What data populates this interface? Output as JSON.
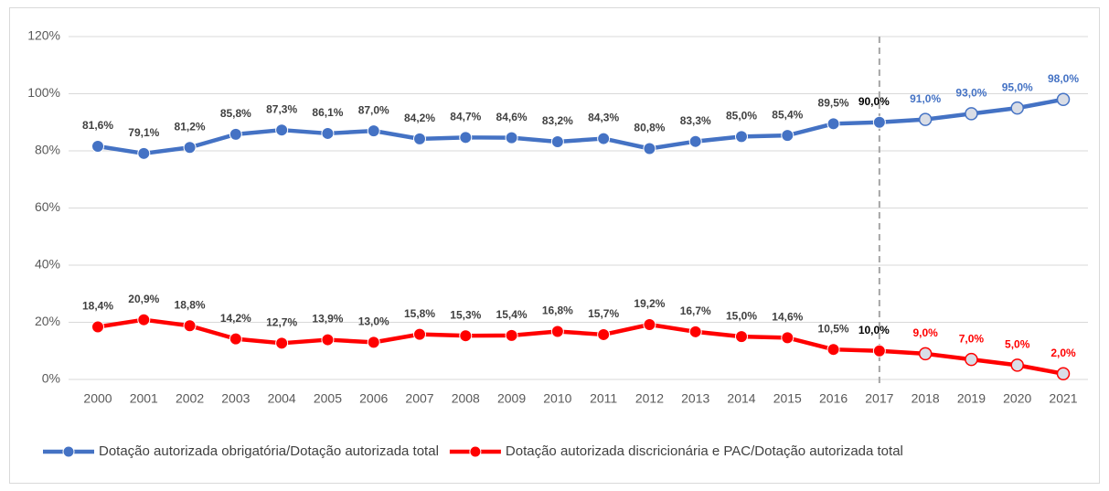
{
  "chart_data": {
    "type": "line",
    "categories": [
      "2000",
      "2001",
      "2002",
      "2003",
      "2004",
      "2005",
      "2006",
      "2007",
      "2008",
      "2009",
      "2010",
      "2011",
      "2012",
      "2013",
      "2014",
      "2015",
      "2016",
      "2017",
      "2018",
      "2019",
      "2020",
      "2021"
    ],
    "series": [
      {
        "name": "Dotação autorizada obrigatória/Dotação autorizada total",
        "color": "#4472c4",
        "values": [
          81.6,
          79.1,
          81.2,
          85.8,
          87.3,
          86.1,
          87.0,
          84.2,
          84.7,
          84.6,
          83.2,
          84.3,
          80.8,
          83.3,
          85.0,
          85.4,
          89.5,
          90.0,
          91.0,
          93.0,
          95.0,
          98.0
        ],
        "value_labels": [
          "81,6%",
          "79,1%",
          "81,2%",
          "85,8%",
          "87,3%",
          "86,1%",
          "87,0%",
          "84,2%",
          "84,7%",
          "84,6%",
          "83,2%",
          "84,3%",
          "80,8%",
          "83,3%",
          "85,0%",
          "85,4%",
          "89,5%",
          "90,0%",
          "91,0%",
          "93,0%",
          "95,0%",
          "98,0%"
        ]
      },
      {
        "name": "Dotação autorizada discricionária e PAC/Dotação autorizada total",
        "color": "#ff0000",
        "values": [
          18.4,
          20.9,
          18.8,
          14.2,
          12.7,
          13.9,
          13.0,
          15.8,
          15.3,
          15.4,
          16.8,
          15.7,
          19.2,
          16.7,
          15.0,
          14.6,
          10.5,
          10.0,
          9.0,
          7.0,
          5.0,
          2.0
        ],
        "value_labels": [
          "18,4%",
          "20,9%",
          "18,8%",
          "14,2%",
          "12,7%",
          "13,9%",
          "13,0%",
          "15,8%",
          "15,3%",
          "15,4%",
          "16,8%",
          "15,7%",
          "19,2%",
          "16,7%",
          "15,0%",
          "14,6%",
          "10,5%",
          "10,0%",
          "9,0%",
          "7,0%",
          "5,0%",
          "2,0%"
        ]
      }
    ],
    "ylim": [
      0,
      120
    ],
    "yticks": [
      {
        "value": 0,
        "label": "0%"
      },
      {
        "value": 20,
        "label": "20%"
      },
      {
        "value": 40,
        "label": "40%"
      },
      {
        "value": 60,
        "label": "60%"
      },
      {
        "value": 80,
        "label": "80%"
      },
      {
        "value": 100,
        "label": "100%"
      },
      {
        "value": 120,
        "label": "120%"
      }
    ],
    "grid": true,
    "vline": {
      "x": "2017",
      "style": "dashed"
    },
    "legend": "bottom"
  }
}
